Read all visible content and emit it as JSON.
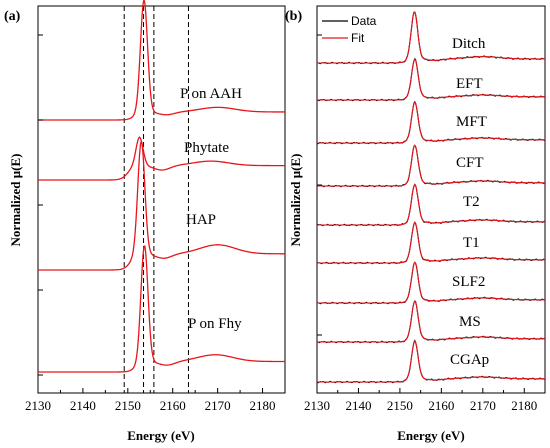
{
  "colors": {
    "data": "#000000",
    "fit": "#e8161b",
    "frame": "#000000"
  },
  "chart_data": [
    {
      "type": "line",
      "panel_label": "(a)",
      "xlabel": "Energy (eV)",
      "ylabel": "Normalized μ(E)",
      "xlim": [
        2130,
        2185
      ],
      "xticks": [
        2130,
        2140,
        2150,
        2160,
        2170,
        2180
      ],
      "reference_lines_x": [
        2149.2,
        2153.5,
        2155.8,
        2163.5
      ],
      "series": [
        {
          "name": "P on AAH",
          "baseline": 0,
          "peak_energy": 2153.6,
          "edge": 2151.5,
          "peak_height": 0.98,
          "post_level": 0.07,
          "osc_energy": 2170,
          "osc_height": 0.04
        },
        {
          "name": "Phytate",
          "baseline": 0,
          "peak_energy": 2152.6,
          "edge": 2150.0,
          "peak_height": 0.16,
          "post_level": 0.08,
          "osc_energy": 2168.5,
          "osc_height": 0.025
        },
        {
          "name": "HAP",
          "baseline": 0,
          "peak_energy": 2153.0,
          "edge": 2150.6,
          "peak_height": 0.63,
          "post_level": 0.09,
          "osc_energy": 2170,
          "osc_height": 0.05
        },
        {
          "name": "P on Fhy",
          "baseline": 0,
          "peak_energy": 2153.7,
          "edge": 2151.8,
          "peak_height": 0.78,
          "post_level": 0.07,
          "osc_energy": 2169.5,
          "osc_height": 0.045
        }
      ]
    },
    {
      "type": "line",
      "panel_label": "(b)",
      "xlabel": "Energy (eV)",
      "ylabel": "Normalized μ(E)",
      "xlim": [
        2130,
        2185
      ],
      "xticks": [
        2130,
        2140,
        2150,
        2160,
        2170,
        2180
      ],
      "legend": {
        "position": "top-left",
        "entries": [
          "Data",
          "Fit"
        ]
      },
      "series": [
        {
          "name": "Ditch",
          "peak_energy": 2153.5
        },
        {
          "name": "EFT",
          "peak_energy": 2153.6
        },
        {
          "name": "MFT",
          "peak_energy": 2153.6
        },
        {
          "name": "CFT",
          "peak_energy": 2153.6
        },
        {
          "name": "T2",
          "peak_energy": 2153.6
        },
        {
          "name": "T1",
          "peak_energy": 2153.6
        },
        {
          "name": "SLF2",
          "peak_energy": 2153.6
        },
        {
          "name": "MS",
          "peak_energy": 2153.6
        },
        {
          "name": "CGAp",
          "peak_energy": 2153.6
        }
      ]
    }
  ]
}
